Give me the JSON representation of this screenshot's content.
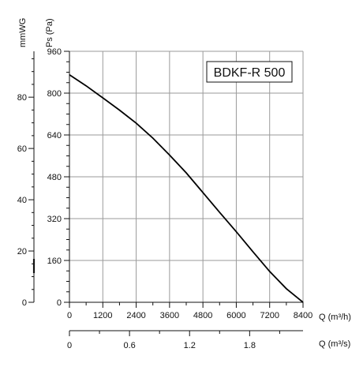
{
  "chart_data": {
    "type": "line",
    "model_label": "BDKF-R 500",
    "y_left_outer_label": "mmWG",
    "y_left_inner_label": "Ps (Pa)",
    "x_primary_label": "Q (m³/h)",
    "x_secondary_label": "Q (m³/s)",
    "x_range": [
      0,
      8400
    ],
    "y_range": [
      0,
      960
    ],
    "x_ticks": [
      0,
      1200,
      2400,
      3600,
      4800,
      6000,
      7200,
      8400
    ],
    "x_tick_labels": [
      "0",
      "1200",
      "2400",
      "3600",
      "4800",
      "6000",
      "7200",
      "8400"
    ],
    "y_ticks": [
      0,
      160,
      320,
      480,
      640,
      800,
      960
    ],
    "y_tick_labels": [
      "0",
      "160",
      "320",
      "480",
      "640",
      "800",
      "960"
    ],
    "mmwg_range": [
      0,
      100
    ],
    "mmwg_ticks": [
      0,
      20,
      40,
      60,
      80
    ],
    "mmwg_tick_labels": [
      "0",
      "20",
      "40",
      "60",
      "80"
    ],
    "m3s_ticks": [
      0,
      0.6,
      1.2,
      1.8
    ],
    "m3s_tick_labels": [
      "0",
      "0.6",
      "1.2",
      "1.8"
    ],
    "grid": true,
    "series": [
      {
        "x": [
          0,
          600,
          1200,
          1800,
          2400,
          3000,
          3600,
          4200,
          4800,
          5400,
          6000,
          6600,
          7200,
          7800,
          8400
        ],
        "y": [
          870,
          828,
          782,
          735,
          685,
          628,
          563,
          495,
          420,
          344,
          270,
          193,
          118,
          52,
          0
        ]
      }
    ]
  }
}
